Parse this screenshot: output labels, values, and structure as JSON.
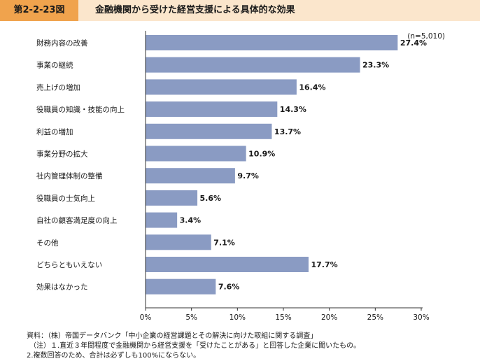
{
  "header": {
    "figure_number": "第2-2-23図",
    "title": "金融機関から受けた経営支援による具体的な効果"
  },
  "chart_data": {
    "type": "bar",
    "orientation": "horizontal",
    "sample_note": "(n=5,010)",
    "categories": [
      "財務内容の改善",
      "事業の継続",
      "売上げの増加",
      "役職員の知識・技能の向上",
      "利益の増加",
      "事業分野の拡大",
      "社内管理体制の整備",
      "役職員の士気向上",
      "自社の顧客満足度の向上",
      "その他",
      "どちらともいえない",
      "効果はなかった"
    ],
    "values": [
      27.4,
      23.3,
      16.4,
      14.3,
      13.7,
      10.9,
      9.7,
      5.6,
      3.4,
      7.1,
      17.7,
      7.6
    ],
    "value_labels": [
      "27.4%",
      "23.3%",
      "16.4%",
      "14.3%",
      "13.7%",
      "10.9%",
      "9.7%",
      "5.6%",
      "3.4%",
      "7.1%",
      "17.7%",
      "7.6%"
    ],
    "xlim": [
      0,
      30
    ],
    "x_ticks": [
      0,
      5,
      10,
      15,
      20,
      25,
      30
    ],
    "x_tick_labels": [
      "0%",
      "5%",
      "10%",
      "15%",
      "20%",
      "25%",
      "30%"
    ],
    "grid": false,
    "legend": "none",
    "bar_color": "#8a9bc3"
  },
  "notes": {
    "source": "資料：（株）帝国データバンク「中小企業の経営課題とその解決に向けた取組に関する調査」",
    "note1": "（注）１.直近３年間程度で金融機関から経営支援を「受けたことがある」と回答した企業に聞いたもの。",
    "note2": "2.複数回答のため、合計は必ずしも100%にならない。"
  }
}
